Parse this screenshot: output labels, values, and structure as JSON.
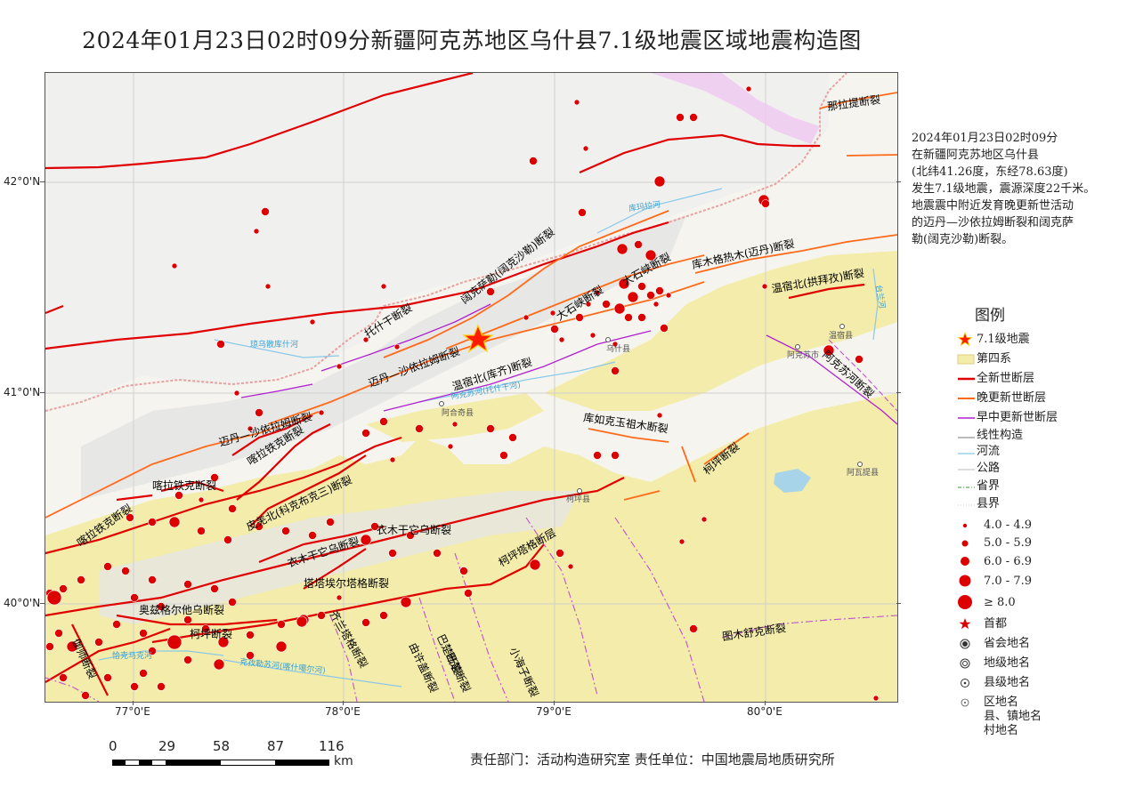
{
  "title": "2024年01月23日02时09分新疆阿克苏地区乌什县7.1级地震区域地震构造图",
  "info_lines": [
    "2024年01月23日02时09分",
    "在新疆阿克苏地区乌什县",
    "(北纬41.26度，东经78.63度)",
    "发生7.1级地震，震源深度22千米。",
    "地震震中附近发育晚更新世活动",
    "的迈丹—沙依拉姆断裂和阔克萨",
    "勒(阔克沙勒)断裂。"
  ],
  "legend": {
    "title": "图例",
    "items": [
      {
        "icon": "red-star-icon",
        "label": "7.1级地震"
      },
      {
        "icon": "yellow-fill-swatch",
        "label": "第四系"
      },
      {
        "icon": "red-line-swatch",
        "label": "全新世断层"
      },
      {
        "icon": "orange-line-swatch",
        "label": "晚更新世断层"
      },
      {
        "icon": "purple-line-swatch",
        "label": "早中更新世断层"
      },
      {
        "icon": "gray-line-swatch",
        "label": "线性构造"
      },
      {
        "icon": "blue-line-swatch",
        "label": "河流"
      },
      {
        "icon": "road-line-swatch",
        "label": "公路"
      },
      {
        "icon": "dashdot-line-swatch",
        "label": "省界"
      },
      {
        "icon": "dotted-line-swatch",
        "label": "县界"
      },
      {
        "icon": "dot-size-1",
        "label": "4.0 - 4.9"
      },
      {
        "icon": "dot-size-2",
        "label": "5.0 - 5.9"
      },
      {
        "icon": "dot-size-3",
        "label": "6.0 - 6.9"
      },
      {
        "icon": "dot-size-4",
        "label": "7.0 - 7.9"
      },
      {
        "icon": "dot-size-5",
        "label": "≥ 8.0"
      },
      {
        "icon": "capital-star-icon",
        "label": "首都"
      },
      {
        "icon": "provincial-capital-icon",
        "label": "省会地名"
      },
      {
        "icon": "prefecture-icon",
        "label": "地级地名"
      },
      {
        "icon": "county-icon",
        "label": "县级地名"
      },
      {
        "icon": "district-icon",
        "label": "区地名\n县、镇地名\n村地名"
      }
    ]
  },
  "axes": {
    "lon_labels": [
      "77°0'E",
      "78°0'E",
      "79°0'E",
      "80°0'E"
    ],
    "lat_labels": [
      "42°0'N",
      "41°0'N",
      "40°0'N"
    ]
  },
  "fault_labels": [
    "那拉提断裂",
    "库木格热木(迈丹)断裂",
    "温宿北(拱拜孜)断裂",
    "阔克萨勒(阔克沙勒)断裂",
    "大石峡断裂",
    "大石峡断裂",
    "托什干断裂",
    "迈丹—沙依拉姆断裂",
    "温宿北(库齐)断裂",
    "迈丹—沙依拉姆断裂",
    "喀拉铁克断裂",
    "喀拉铁克断裂",
    "皮羌北(科克布克三)断裂",
    "库如克玉祖木断裂",
    "柯坪断裂",
    "阿克苏河断裂",
    "衣木干它乌断裂",
    "衣木干它乌断裂",
    "柯坪塔格断层",
    "塔塔埃尔塔格断裂",
    "喀拉铁克断裂",
    "奥兹格尔他乌断裂",
    "柯坪断裂",
    "齐兰塔格断裂",
    "巴楚断裂",
    "由许盖断裂",
    "巴楚断裂",
    "小海子断裂",
    "图木舒克断裂",
    "伽师断裂"
  ],
  "place_labels": [
    "乌什县",
    "阿合奇县",
    "温宿县",
    "阿克苏市",
    "柯坪县",
    "阿瓦提县"
  ],
  "river_labels": [
    "库玛拉河",
    "琼乌散库什河",
    "阿克苏河(托什干河)",
    "恰克马克河",
    "克孜勒苏河(喀什噶尔河)",
    "台兰河"
  ],
  "scale": {
    "ticks": [
      "0",
      "29",
      "58",
      "87",
      "116"
    ],
    "unit": "km"
  },
  "credits": "责任部门：活动构造研究室   责任单位：中国地震局地质研究所"
}
